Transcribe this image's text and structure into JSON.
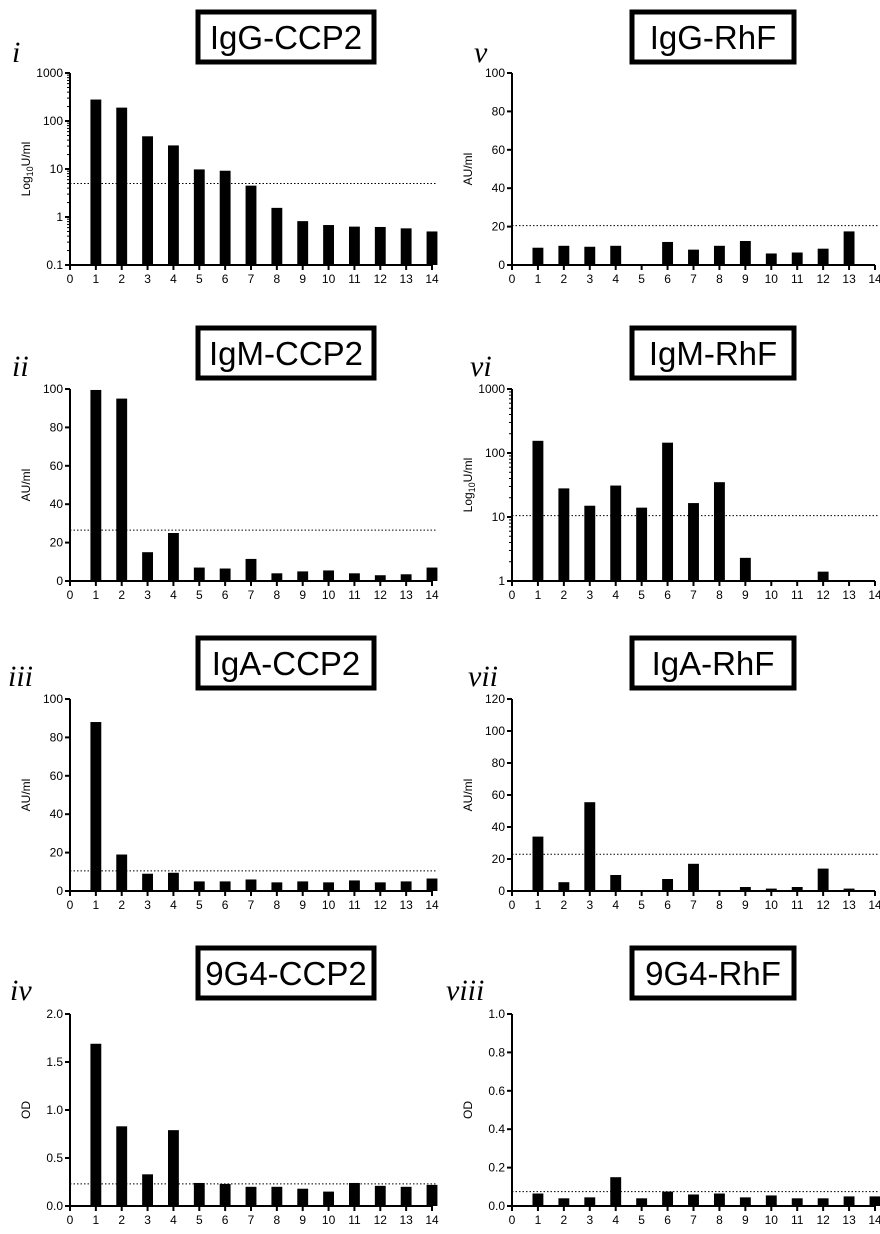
{
  "chart_data": [
    {
      "type": "bar",
      "panel_label": "i",
      "title": "IgG-CCP2",
      "ylabel": "Log10U/ml",
      "yscale": "log",
      "ylim": [
        0.1,
        1000
      ],
      "yticks": [
        0.1,
        1,
        10,
        100,
        1000
      ],
      "ytick_labels": [
        "0.1",
        "1",
        "10",
        "100",
        "1000"
      ],
      "xticks": [
        0,
        1,
        2,
        3,
        4,
        5,
        6,
        7,
        8,
        9,
        10,
        11,
        12,
        13,
        14
      ],
      "categories": [
        1,
        2,
        3,
        4,
        5,
        6,
        7,
        8,
        9,
        10,
        11,
        12,
        13,
        14
      ],
      "values": [
        280,
        190,
        48,
        31,
        9.8,
        9.2,
        4.5,
        1.55,
        0.82,
        0.68,
        0.63,
        0.62,
        0.58,
        0.5
      ],
      "threshold": 5
    },
    {
      "type": "bar",
      "panel_label": "ii",
      "title": "IgM-CCP2",
      "ylabel": "AU/ml",
      "yscale": "linear",
      "ylim": [
        0,
        100
      ],
      "yticks": [
        0,
        20,
        40,
        60,
        80,
        100
      ],
      "ytick_labels": [
        "0",
        "20",
        "40",
        "60",
        "80",
        "100"
      ],
      "xticks": [
        0,
        1,
        2,
        3,
        4,
        5,
        6,
        7,
        8,
        9,
        10,
        11,
        12,
        13,
        14
      ],
      "categories": [
        1,
        2,
        3,
        4,
        5,
        6,
        7,
        8,
        9,
        10,
        11,
        12,
        13,
        14
      ],
      "values": [
        99.5,
        95,
        15,
        25,
        7,
        6.5,
        11.5,
        4,
        5,
        5.5,
        4,
        3,
        3.5,
        7
      ],
      "threshold": 26.5
    },
    {
      "type": "bar",
      "panel_label": "iii",
      "title": "IgA-CCP2",
      "ylabel": "AU/ml",
      "yscale": "linear",
      "ylim": [
        0,
        100
      ],
      "yticks": [
        0,
        20,
        40,
        60,
        80,
        100
      ],
      "ytick_labels": [
        "0",
        "20",
        "40",
        "60",
        "80",
        "100"
      ],
      "xticks": [
        0,
        1,
        2,
        3,
        4,
        5,
        6,
        7,
        8,
        9,
        10,
        11,
        12,
        13,
        14
      ],
      "categories": [
        1,
        2,
        3,
        4,
        5,
        6,
        7,
        8,
        9,
        10,
        11,
        12,
        13,
        14
      ],
      "values": [
        88,
        19,
        9,
        9.5,
        5,
        5,
        6,
        4.5,
        5,
        4.5,
        5.5,
        4.5,
        5,
        6.5
      ],
      "threshold": 10.5
    },
    {
      "type": "bar",
      "panel_label": "iv",
      "title": "9G4-CCP2",
      "ylabel": "OD",
      "yscale": "linear",
      "ylim": [
        0,
        2.0
      ],
      "yticks": [
        0,
        0.5,
        1.0,
        1.5,
        2.0
      ],
      "ytick_labels": [
        "0.0",
        "0.5",
        "1.0",
        "1.5",
        "2.0"
      ],
      "xticks": [
        0,
        1,
        2,
        3,
        4,
        5,
        6,
        7,
        8,
        9,
        10,
        11,
        12,
        13,
        14
      ],
      "categories": [
        1,
        2,
        3,
        4,
        5,
        6,
        7,
        8,
        9,
        10,
        11,
        12,
        13,
        14
      ],
      "values": [
        1.69,
        0.83,
        0.33,
        0.79,
        0.24,
        0.23,
        0.2,
        0.2,
        0.18,
        0.15,
        0.24,
        0.21,
        0.2,
        0.22
      ],
      "threshold": 0.23
    },
    {
      "type": "bar",
      "panel_label": "v",
      "title": "IgG-RhF",
      "ylabel": "AU/ml",
      "yscale": "linear",
      "ylim": [
        0,
        100
      ],
      "yticks": [
        0,
        20,
        40,
        60,
        80,
        100
      ],
      "ytick_labels": [
        "0",
        "20",
        "40",
        "60",
        "80",
        "100"
      ],
      "xticks": [
        0,
        1,
        2,
        3,
        4,
        5,
        6,
        7,
        8,
        9,
        10,
        11,
        12,
        13,
        14
      ],
      "categories": [
        1,
        2,
        3,
        4,
        5,
        6,
        7,
        8,
        9,
        10,
        11,
        12,
        13,
        14
      ],
      "values": [
        9,
        10,
        9.5,
        10,
        0,
        12,
        8,
        10,
        12.5,
        6,
        6.5,
        8.5,
        17.5,
        0
      ],
      "threshold": 20.5
    },
    {
      "type": "bar",
      "panel_label": "vi",
      "title": "IgM-RhF",
      "ylabel": "Log10U/ml",
      "yscale": "log",
      "ylim": [
        1,
        1000
      ],
      "yticks": [
        1,
        10,
        100,
        1000
      ],
      "ytick_labels": [
        "1",
        "10",
        "100",
        "1000"
      ],
      "xticks": [
        0,
        1,
        2,
        3,
        4,
        5,
        6,
        7,
        8,
        9,
        10,
        11,
        12,
        13,
        14
      ],
      "categories": [
        1,
        2,
        3,
        4,
        5,
        6,
        7,
        8,
        9,
        10,
        11,
        12,
        13,
        14
      ],
      "values": [
        155,
        28,
        15,
        31,
        14,
        145,
        16.5,
        35,
        2.3,
        0,
        0,
        1.4,
        0,
        0
      ],
      "threshold": 10.5
    },
    {
      "type": "bar",
      "panel_label": "vii",
      "title": "IgA-RhF",
      "ylabel": "AU/ml",
      "yscale": "linear",
      "ylim": [
        0,
        120
      ],
      "yticks": [
        0,
        20,
        40,
        60,
        80,
        100,
        120
      ],
      "ytick_labels": [
        "0",
        "20",
        "40",
        "60",
        "80",
        "100",
        "120"
      ],
      "xticks": [
        0,
        1,
        2,
        3,
        4,
        5,
        6,
        7,
        8,
        9,
        10,
        11,
        12,
        13,
        14
      ],
      "categories": [
        1,
        2,
        3,
        4,
        5,
        6,
        7,
        8,
        9,
        10,
        11,
        12,
        13,
        14
      ],
      "values": [
        34,
        5.5,
        55.5,
        10,
        0,
        7.5,
        17,
        0,
        2.5,
        1.5,
        2.5,
        14,
        1.5,
        0
      ],
      "threshold": 23
    },
    {
      "type": "bar",
      "panel_label": "viii",
      "title": "9G4-RhF",
      "ylabel": "OD",
      "yscale": "linear",
      "ylim": [
        0,
        1.0
      ],
      "yticks": [
        0,
        0.2,
        0.4,
        0.6,
        0.8,
        1.0
      ],
      "ytick_labels": [
        "0.0",
        "0.2",
        "0.4",
        "0.6",
        "0.8",
        "1.0"
      ],
      "xticks": [
        0,
        1,
        2,
        3,
        4,
        5,
        6,
        7,
        8,
        9,
        10,
        11,
        12,
        13,
        14
      ],
      "categories": [
        1,
        2,
        3,
        4,
        5,
        6,
        7,
        8,
        9,
        10,
        11,
        12,
        13,
        14
      ],
      "values": [
        0.065,
        0.04,
        0.045,
        0.15,
        0.04,
        0.075,
        0.06,
        0.065,
        0.045,
        0.055,
        0.04,
        0.04,
        0.05,
        0.05
      ],
      "threshold": 0.075
    }
  ]
}
